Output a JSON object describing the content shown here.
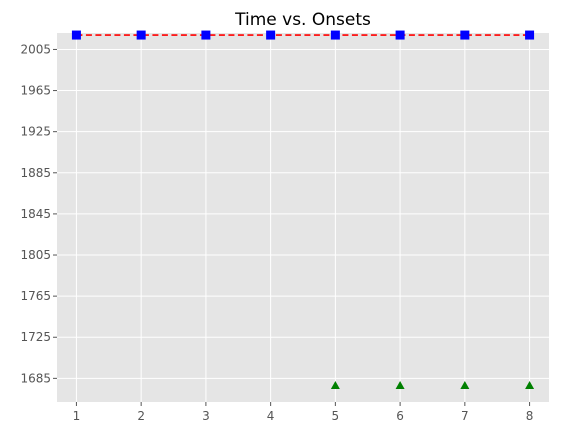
{
  "chart_data": {
    "type": "line",
    "title": "Time vs. Onsets",
    "xlabel": "",
    "ylabel": "",
    "x_ticks": [
      1,
      2,
      3,
      4,
      5,
      6,
      7,
      8
    ],
    "y_ticks": [
      1685,
      1725,
      1765,
      1805,
      1845,
      1885,
      1925,
      1965,
      2005
    ],
    "xlim": [
      0.7,
      8.3
    ],
    "ylim": [
      1662,
      2021
    ],
    "grid": true,
    "series": [
      {
        "style": "red-dashed-line",
        "color": "#ff0000",
        "x": [
          1,
          2,
          3,
          4,
          5,
          6,
          7,
          8
        ],
        "y": [
          2019,
          2019,
          2019,
          2019,
          2019,
          2019,
          2019,
          2019
        ]
      },
      {
        "style": "blue-square-markers",
        "color": "#0000ff",
        "x": [
          1,
          2,
          3,
          4,
          5,
          6,
          7,
          8
        ],
        "y": [
          2019,
          2019,
          2019,
          2019,
          2019,
          2019,
          2019,
          2019
        ]
      },
      {
        "style": "green-triangle-markers",
        "color": "#008000",
        "x": [
          5,
          6,
          7,
          8
        ],
        "y": [
          1678,
          1678,
          1678,
          1678
        ]
      }
    ]
  }
}
